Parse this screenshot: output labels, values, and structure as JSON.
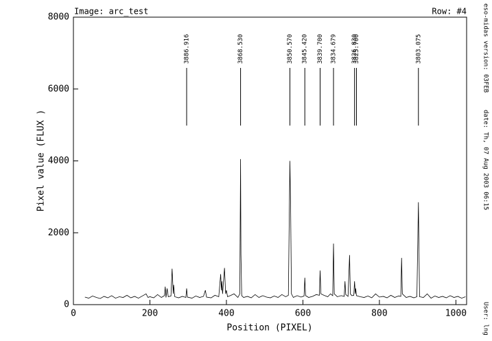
{
  "chart_data": {
    "type": "line",
    "header_left": "Image: arc_test",
    "header_right": "Row: #4",
    "xlabel": "Position (PIXEL)",
    "ylabel": "Pixel value (FLUX )",
    "side_texts": [
      "eso-midas version: 03FEB",
      "date: Th, 07 Aug 2003 06:15",
      "User: lng"
    ],
    "xlim": [
      0,
      1028
    ],
    "ylim": [
      0,
      8000
    ],
    "xticks": [
      0,
      200,
      400,
      600,
      800,
      1000
    ],
    "yticks": [
      0,
      2000,
      4000,
      6000,
      8000
    ],
    "line_ids": [
      {
        "x": 296,
        "label": "3886.916"
      },
      {
        "x": 437,
        "label": "3868.530"
      },
      {
        "x": 566,
        "label": "3850.570"
      },
      {
        "x": 605,
        "label": "3845.420"
      },
      {
        "x": 645,
        "label": "3839.700"
      },
      {
        "x": 680,
        "label": "3834.679"
      },
      {
        "x": 735,
        "label": "3826.830"
      },
      {
        "x": 740,
        "label": "3825.700"
      },
      {
        "x": 902,
        "label": "3803.075"
      }
    ],
    "series": [
      {
        "name": "arc_test",
        "color": "#000000",
        "x": [
          30,
          40,
          50,
          60,
          70,
          80,
          90,
          100,
          110,
          120,
          130,
          140,
          150,
          160,
          170,
          180,
          190,
          195,
          200,
          210,
          220,
          230,
          238,
          240,
          242,
          245,
          248,
          255,
          258,
          261,
          262,
          265,
          275,
          285,
          294,
          296,
          298,
          310,
          320,
          330,
          340,
          345,
          348,
          360,
          370,
          380,
          385,
          387,
          388,
          390,
          395,
          398,
          400,
          403,
          410,
          420,
          430,
          435,
          437,
          438,
          440,
          445,
          455,
          465,
          475,
          485,
          495,
          505,
          515,
          525,
          535,
          545,
          555,
          562,
          566,
          568,
          570,
          575,
          585,
          595,
          603,
          605,
          607,
          615,
          625,
          635,
          643,
          645,
          647,
          655,
          665,
          672,
          678,
          680,
          682,
          690,
          700,
          708,
          710,
          712,
          718,
          722,
          724,
          728,
          733,
          735,
          737,
          738,
          740,
          750,
          760,
          770,
          780,
          790,
          800,
          810,
          820,
          830,
          840,
          850,
          856,
          858,
          860,
          870,
          880,
          890,
          898,
          902,
          903,
          905,
          915,
          925,
          935,
          945,
          955,
          965,
          975,
          985,
          995,
          1005,
          1015,
          1025
        ],
        "values": [
          210,
          180,
          240,
          200,
          170,
          230,
          190,
          250,
          180,
          220,
          200,
          260,
          190,
          230,
          180,
          240,
          300,
          200,
          220,
          190,
          280,
          200,
          250,
          500,
          200,
          450,
          220,
          240,
          1000,
          300,
          550,
          220,
          190,
          230,
          200,
          450,
          210,
          180,
          240,
          200,
          230,
          400,
          210,
          190,
          260,
          220,
          850,
          400,
          650,
          300,
          1020,
          300,
          400,
          220,
          250,
          300,
          200,
          300,
          4050,
          1400,
          250,
          200,
          230,
          190,
          280,
          200,
          250,
          210,
          190,
          240,
          200,
          280,
          220,
          260,
          4000,
          2600,
          300,
          200,
          250,
          210,
          240,
          750,
          250,
          200,
          230,
          280,
          260,
          950,
          300,
          260,
          220,
          300,
          250,
          1700,
          300,
          220,
          250,
          230,
          650,
          280,
          230,
          1380,
          300,
          250,
          260,
          650,
          300,
          450,
          250,
          220,
          200,
          240,
          190,
          300,
          210,
          230,
          190,
          260,
          200,
          240,
          230,
          1300,
          300,
          200,
          230,
          190,
          220,
          2850,
          1900,
          220,
          200,
          300,
          180,
          240,
          200,
          230,
          190,
          250,
          200,
          230,
          180,
          220
        ]
      }
    ]
  }
}
